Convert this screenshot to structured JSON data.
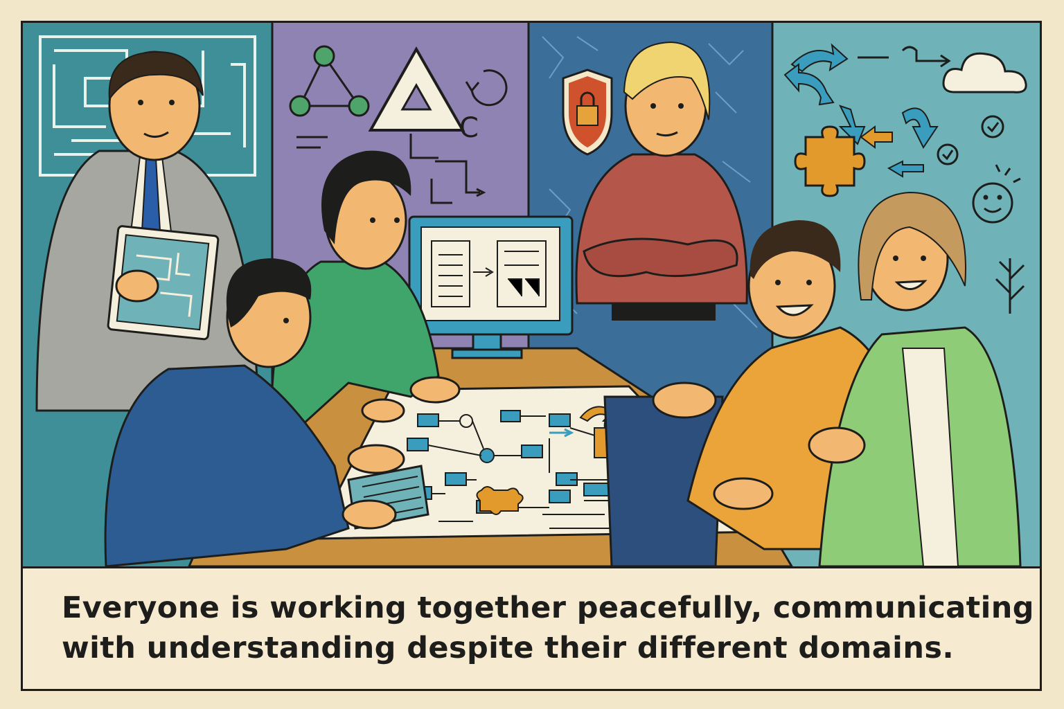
{
  "caption": {
    "line1": "Everyone is working together peacefully, communicating",
    "line2": "with understanding despite their different domains."
  },
  "icons": {
    "panel1": [
      "maze-pattern"
    ],
    "panel2": [
      "triangle-node-graph",
      "triangle-sign",
      "circular-arrow",
      "flowchart-lines"
    ],
    "panel3": [
      "shield-lock-icon",
      "circuit-pattern"
    ],
    "panel4": [
      "curved-arrows",
      "cloud-icon",
      "puzzle-piece-icon",
      "check-circle-icon",
      "smiley-face-icon",
      "plant-icon"
    ]
  },
  "colors": {
    "outline": "#1d1d1b",
    "paper": "#f5e8c8",
    "panel_teal": "#3f8f99",
    "panel_purple": "#8f83b3",
    "panel_blue": "#3b6f99",
    "panel_light_teal": "#6fb3b8",
    "table_wood": "#c9913f",
    "accent_orange": "#e39a2d",
    "accent_blue": "#3a9dbd"
  }
}
